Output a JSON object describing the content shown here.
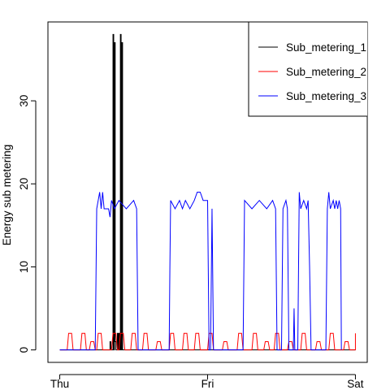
{
  "chart_data": {
    "type": "line",
    "ylabel": "Energy sub metering",
    "xticks": [
      {
        "x": 0,
        "label": "Thu"
      },
      {
        "x": 1,
        "label": "Fri"
      },
      {
        "x": 2,
        "label": "Sat"
      }
    ],
    "yticks": [
      0,
      10,
      20,
      30
    ],
    "xlim": [
      -0.08,
      2.08
    ],
    "ylim": [
      -1.5,
      39.5
    ],
    "legend_position": "top-right",
    "grid": false,
    "series": [
      {
        "name": "Sub_metering_1",
        "color": "#000000",
        "points": [
          [
            0,
            0
          ],
          [
            0.34,
            0
          ],
          [
            0.34,
            1
          ],
          [
            0.345,
            1
          ],
          [
            0.345,
            0
          ],
          [
            0.36,
            0
          ],
          [
            0.36,
            38
          ],
          [
            0.365,
            38
          ],
          [
            0.365,
            0
          ],
          [
            0.37,
            0
          ],
          [
            0.37,
            37
          ],
          [
            0.375,
            37
          ],
          [
            0.375,
            1
          ],
          [
            0.38,
            1
          ],
          [
            0.38,
            0
          ],
          [
            0.39,
            0
          ],
          [
            0.39,
            2
          ],
          [
            0.395,
            2
          ],
          [
            0.395,
            0
          ],
          [
            0.4,
            0
          ],
          [
            0.4,
            2
          ],
          [
            0.405,
            2
          ],
          [
            0.405,
            0
          ],
          [
            0.41,
            0
          ],
          [
            0.41,
            38
          ],
          [
            0.415,
            38
          ],
          [
            0.415,
            0
          ],
          [
            0.42,
            0
          ],
          [
            0.42,
            37
          ],
          [
            0.425,
            37
          ],
          [
            0.425,
            0
          ],
          [
            2.0,
            0
          ]
        ]
      },
      {
        "name": "Sub_metering_2",
        "color": "#ff0000",
        "points": [
          [
            0,
            0
          ],
          [
            0.05,
            0
          ],
          [
            0.06,
            2
          ],
          [
            0.08,
            2
          ],
          [
            0.09,
            0
          ],
          [
            0.14,
            0
          ],
          [
            0.15,
            2
          ],
          [
            0.17,
            2
          ],
          [
            0.18,
            0
          ],
          [
            0.2,
            0
          ],
          [
            0.21,
            1
          ],
          [
            0.23,
            1
          ],
          [
            0.24,
            0
          ],
          [
            0.25,
            0
          ],
          [
            0.26,
            2
          ],
          [
            0.28,
            2
          ],
          [
            0.29,
            0
          ],
          [
            0.35,
            0
          ],
          [
            0.36,
            2
          ],
          [
            0.38,
            2
          ],
          [
            0.39,
            0
          ],
          [
            0.4,
            0
          ],
          [
            0.41,
            2
          ],
          [
            0.43,
            2
          ],
          [
            0.44,
            0
          ],
          [
            0.48,
            0
          ],
          [
            0.49,
            2
          ],
          [
            0.51,
            2
          ],
          [
            0.52,
            0
          ],
          [
            0.56,
            0
          ],
          [
            0.57,
            2
          ],
          [
            0.59,
            2
          ],
          [
            0.6,
            0
          ],
          [
            0.65,
            0
          ],
          [
            0.66,
            1
          ],
          [
            0.68,
            1
          ],
          [
            0.69,
            0
          ],
          [
            0.74,
            0
          ],
          [
            0.75,
            2
          ],
          [
            0.77,
            2
          ],
          [
            0.78,
            0
          ],
          [
            0.83,
            0
          ],
          [
            0.84,
            2
          ],
          [
            0.86,
            2
          ],
          [
            0.87,
            0
          ],
          [
            0.91,
            0
          ],
          [
            0.92,
            2
          ],
          [
            0.94,
            2
          ],
          [
            0.95,
            0
          ],
          [
            1.0,
            0
          ],
          [
            1.01,
            2
          ],
          [
            1.03,
            2
          ],
          [
            1.04,
            0
          ],
          [
            1.1,
            0
          ],
          [
            1.11,
            1
          ],
          [
            1.13,
            1
          ],
          [
            1.14,
            0
          ],
          [
            1.2,
            0
          ],
          [
            1.21,
            2
          ],
          [
            1.23,
            2
          ],
          [
            1.24,
            0
          ],
          [
            1.3,
            0
          ],
          [
            1.31,
            2
          ],
          [
            1.33,
            2
          ],
          [
            1.34,
            0
          ],
          [
            1.38,
            0
          ],
          [
            1.39,
            1
          ],
          [
            1.41,
            1
          ],
          [
            1.42,
            0
          ],
          [
            1.45,
            0
          ],
          [
            1.46,
            2
          ],
          [
            1.48,
            2
          ],
          [
            1.49,
            0
          ],
          [
            1.54,
            0
          ],
          [
            1.55,
            1
          ],
          [
            1.57,
            1
          ],
          [
            1.58,
            0
          ],
          [
            1.63,
            0
          ],
          [
            1.64,
            2
          ],
          [
            1.66,
            2
          ],
          [
            1.67,
            0
          ],
          [
            1.73,
            0
          ],
          [
            1.74,
            1
          ],
          [
            1.76,
            1
          ],
          [
            1.77,
            0
          ],
          [
            1.82,
            0
          ],
          [
            1.83,
            2
          ],
          [
            1.85,
            2
          ],
          [
            1.86,
            0
          ],
          [
            1.92,
            0
          ],
          [
            1.93,
            1
          ],
          [
            1.95,
            1
          ],
          [
            1.96,
            0
          ],
          [
            2.0,
            0
          ],
          [
            2.0,
            2
          ]
        ]
      },
      {
        "name": "Sub_metering_3",
        "color": "#0000ff",
        "points": [
          [
            0,
            0
          ],
          [
            0.24,
            0
          ],
          [
            0.25,
            17
          ],
          [
            0.26,
            18
          ],
          [
            0.27,
            19
          ],
          [
            0.28,
            17
          ],
          [
            0.29,
            19
          ],
          [
            0.3,
            17
          ],
          [
            0.31,
            17
          ],
          [
            0.33,
            17
          ],
          [
            0.34,
            16
          ],
          [
            0.35,
            18
          ],
          [
            0.37,
            17
          ],
          [
            0.4,
            18
          ],
          [
            0.45,
            17
          ],
          [
            0.5,
            18
          ],
          [
            0.52,
            17
          ],
          [
            0.53,
            0
          ],
          [
            0.74,
            0
          ],
          [
            0.745,
            10
          ],
          [
            0.75,
            18
          ],
          [
            0.78,
            17
          ],
          [
            0.81,
            18
          ],
          [
            0.83,
            17
          ],
          [
            0.85,
            18
          ],
          [
            0.88,
            17
          ],
          [
            0.91,
            18
          ],
          [
            0.93,
            19
          ],
          [
            0.95,
            19
          ],
          [
            0.97,
            18
          ],
          [
            1.0,
            18
          ],
          [
            1.01,
            0
          ],
          [
            1.02,
            0
          ],
          [
            1.03,
            17
          ],
          [
            1.04,
            0
          ],
          [
            1.24,
            0
          ],
          [
            1.25,
            18
          ],
          [
            1.3,
            17
          ],
          [
            1.35,
            18
          ],
          [
            1.4,
            17
          ],
          [
            1.44,
            18
          ],
          [
            1.46,
            17
          ],
          [
            1.47,
            0
          ],
          [
            1.5,
            0
          ],
          [
            1.51,
            17
          ],
          [
            1.53,
            18
          ],
          [
            1.54,
            17
          ],
          [
            1.55,
            0
          ],
          [
            1.58,
            0
          ],
          [
            1.585,
            5
          ],
          [
            1.59,
            0
          ],
          [
            1.61,
            0
          ],
          [
            1.62,
            19
          ],
          [
            1.63,
            17
          ],
          [
            1.65,
            18
          ],
          [
            1.67,
            17
          ],
          [
            1.68,
            18
          ],
          [
            1.69,
            10
          ],
          [
            1.7,
            0
          ],
          [
            1.8,
            0
          ],
          [
            1.81,
            17
          ],
          [
            1.82,
            19
          ],
          [
            1.83,
            17
          ],
          [
            1.85,
            18
          ],
          [
            1.86,
            17
          ],
          [
            1.87,
            18
          ],
          [
            1.88,
            17
          ],
          [
            1.89,
            18
          ],
          [
            1.9,
            17
          ],
          [
            1.905,
            0
          ]
        ]
      }
    ]
  }
}
